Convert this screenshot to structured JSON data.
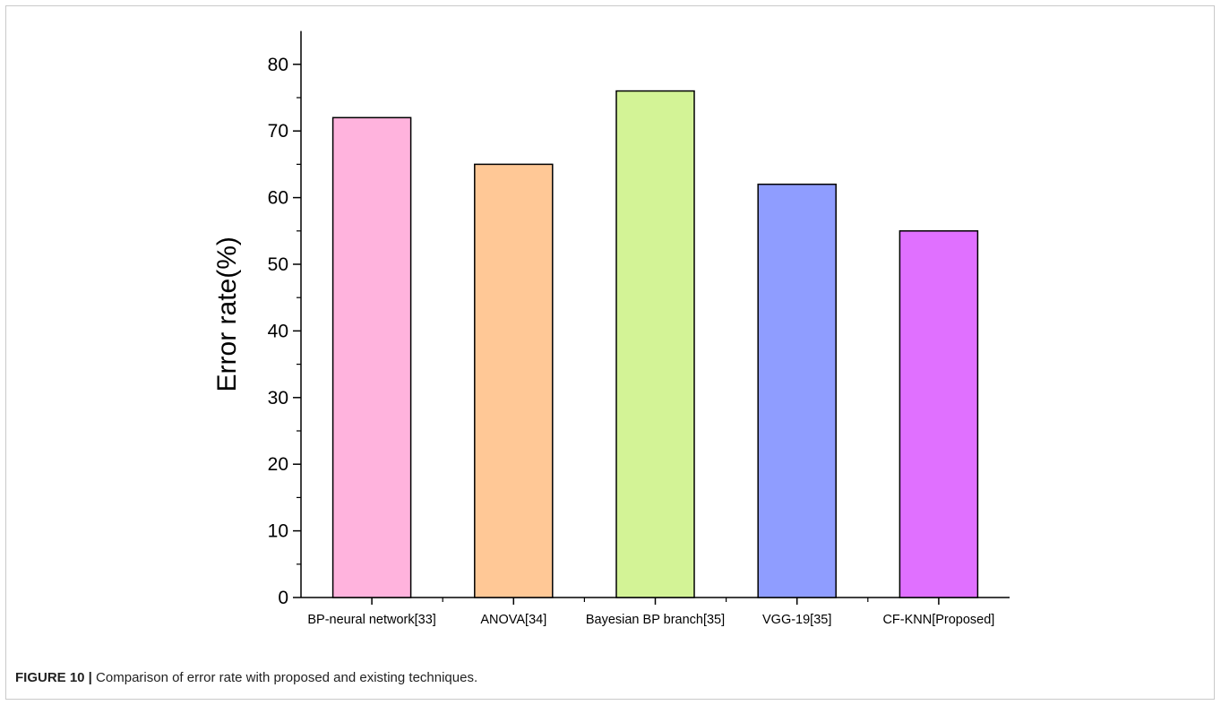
{
  "caption": {
    "label": "FIGURE 10 |",
    "text": " Comparison of error rate with proposed and existing techniques."
  },
  "chart_data": {
    "type": "bar",
    "title": "",
    "xlabel": "",
    "ylabel": "Error rate(%)",
    "ylim": [
      0,
      85
    ],
    "yticks": [
      "0",
      "10",
      "20",
      "30",
      "40",
      "50",
      "60",
      "70",
      "80"
    ],
    "categories": [
      "BP-neural network[33]",
      "ANOVA[34]",
      "Bayesian BP branch[35]",
      "VGG-19[35]",
      "CF-KNN[Proposed]"
    ],
    "values": [
      72,
      65,
      76,
      62,
      55
    ],
    "colors": [
      "#ffb3dd",
      "#ffc896",
      "#d3f396",
      "#8f9dff",
      "#e070ff"
    ],
    "grid": false,
    "legend": "none"
  }
}
